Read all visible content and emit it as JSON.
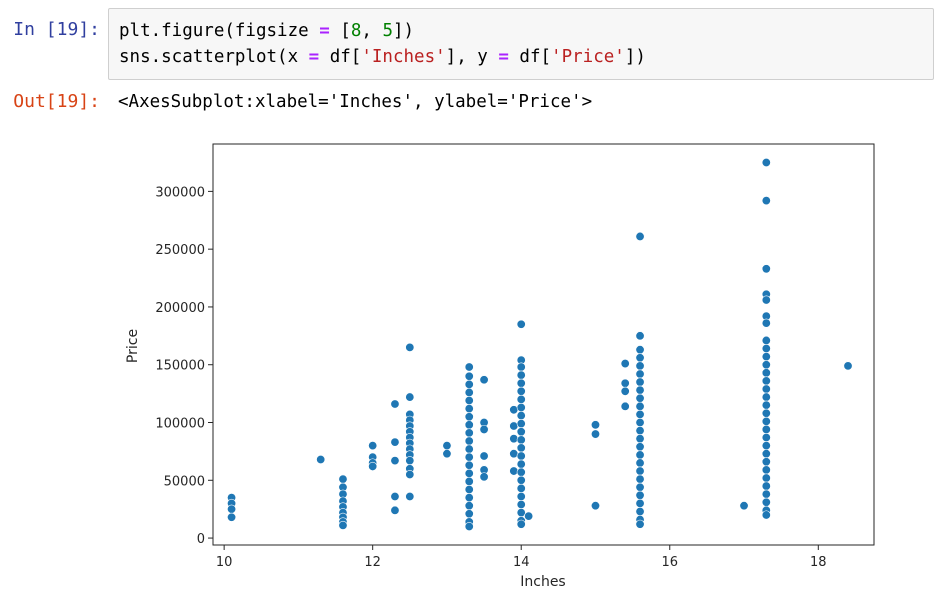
{
  "cell": {
    "in_prompt": "In [19]:",
    "out_prompt": "Out[19]:",
    "code": {
      "line1": {
        "a": "plt.figure(figsize ",
        "op": "=",
        "b": " [",
        "n1": "8",
        "c": ", ",
        "n2": "5",
        "d": "])"
      },
      "line2": {
        "a": "sns.scatterplot(x ",
        "op1": "=",
        "b": " df[",
        "s1": "'Inches'",
        "c": "], y ",
        "op2": "=",
        "d": " df[",
        "s2": "'Price'",
        "e": "])"
      }
    },
    "output": "<AxesSubplot:xlabel='Inches', ylabel='Price'>"
  },
  "chart_data": {
    "type": "scatter",
    "xlabel": "Inches",
    "ylabel": "Price",
    "xlim": [
      9.85,
      18.75
    ],
    "ylim": [
      -6000,
      341000
    ],
    "x_ticks": [
      10,
      12,
      14,
      16,
      18
    ],
    "y_ticks": [
      0,
      50000,
      100000,
      150000,
      200000,
      250000,
      300000
    ],
    "point_color": "#1f77b4",
    "grid": false,
    "points": [
      [
        10.1,
        35000
      ],
      [
        10.1,
        30000
      ],
      [
        10.1,
        25000
      ],
      [
        10.1,
        18000
      ],
      [
        11.3,
        68000
      ],
      [
        11.6,
        51000
      ],
      [
        11.6,
        44000
      ],
      [
        11.6,
        38000
      ],
      [
        11.6,
        32000
      ],
      [
        11.6,
        27000
      ],
      [
        11.6,
        22000
      ],
      [
        11.6,
        18000
      ],
      [
        11.6,
        14000
      ],
      [
        11.6,
        11000
      ],
      [
        12.0,
        80000
      ],
      [
        12.0,
        70000
      ],
      [
        12.0,
        65000
      ],
      [
        12.0,
        62000
      ],
      [
        12.3,
        116000
      ],
      [
        12.3,
        83000
      ],
      [
        12.3,
        67000
      ],
      [
        12.3,
        36000
      ],
      [
        12.3,
        24000
      ],
      [
        12.5,
        165000
      ],
      [
        12.5,
        122000
      ],
      [
        12.5,
        107000
      ],
      [
        12.5,
        102000
      ],
      [
        12.5,
        97000
      ],
      [
        12.5,
        92000
      ],
      [
        12.5,
        87000
      ],
      [
        12.5,
        82000
      ],
      [
        12.5,
        77000
      ],
      [
        12.5,
        72000
      ],
      [
        12.5,
        67000
      ],
      [
        12.5,
        60000
      ],
      [
        12.5,
        55000
      ],
      [
        12.5,
        36000
      ],
      [
        13.0,
        80000
      ],
      [
        13.0,
        73000
      ],
      [
        13.3,
        148000
      ],
      [
        13.3,
        140000
      ],
      [
        13.3,
        133000
      ],
      [
        13.3,
        126000
      ],
      [
        13.3,
        119000
      ],
      [
        13.3,
        112000
      ],
      [
        13.3,
        105000
      ],
      [
        13.3,
        98000
      ],
      [
        13.3,
        91000
      ],
      [
        13.3,
        84000
      ],
      [
        13.3,
        77000
      ],
      [
        13.3,
        70000
      ],
      [
        13.3,
        63000
      ],
      [
        13.3,
        56000
      ],
      [
        13.3,
        49000
      ],
      [
        13.3,
        42000
      ],
      [
        13.3,
        35000
      ],
      [
        13.3,
        28000
      ],
      [
        13.3,
        21000
      ],
      [
        13.3,
        14000
      ],
      [
        13.3,
        10000
      ],
      [
        13.5,
        137000
      ],
      [
        13.5,
        100000
      ],
      [
        13.5,
        94000
      ],
      [
        13.5,
        71000
      ],
      [
        13.5,
        59000
      ],
      [
        13.5,
        53000
      ],
      [
        13.9,
        111000
      ],
      [
        13.9,
        97000
      ],
      [
        13.9,
        86000
      ],
      [
        13.9,
        73000
      ],
      [
        13.9,
        58000
      ],
      [
        14.0,
        185000
      ],
      [
        14.0,
        154000
      ],
      [
        14.0,
        148000
      ],
      [
        14.0,
        141000
      ],
      [
        14.0,
        134000
      ],
      [
        14.0,
        127000
      ],
      [
        14.0,
        120000
      ],
      [
        14.0,
        113000
      ],
      [
        14.0,
        106000
      ],
      [
        14.0,
        99000
      ],
      [
        14.0,
        92000
      ],
      [
        14.0,
        85000
      ],
      [
        14.0,
        78000
      ],
      [
        14.0,
        71000
      ],
      [
        14.0,
        64000
      ],
      [
        14.0,
        57000
      ],
      [
        14.0,
        50000
      ],
      [
        14.0,
        43000
      ],
      [
        14.0,
        36000
      ],
      [
        14.0,
        29000
      ],
      [
        14.0,
        22000
      ],
      [
        14.0,
        15000
      ],
      [
        14.0,
        12000
      ],
      [
        14.1,
        19000
      ],
      [
        15.0,
        98000
      ],
      [
        15.0,
        90000
      ],
      [
        15.0,
        28000
      ],
      [
        15.4,
        151000
      ],
      [
        15.4,
        134000
      ],
      [
        15.4,
        127000
      ],
      [
        15.4,
        114000
      ],
      [
        15.6,
        261000
      ],
      [
        15.6,
        175000
      ],
      [
        15.6,
        163000
      ],
      [
        15.6,
        156000
      ],
      [
        15.6,
        149000
      ],
      [
        15.6,
        142000
      ],
      [
        15.6,
        135000
      ],
      [
        15.6,
        128000
      ],
      [
        15.6,
        121000
      ],
      [
        15.6,
        114000
      ],
      [
        15.6,
        107000
      ],
      [
        15.6,
        100000
      ],
      [
        15.6,
        93000
      ],
      [
        15.6,
        86000
      ],
      [
        15.6,
        79000
      ],
      [
        15.6,
        72000
      ],
      [
        15.6,
        65000
      ],
      [
        15.6,
        58000
      ],
      [
        15.6,
        51000
      ],
      [
        15.6,
        44000
      ],
      [
        15.6,
        37000
      ],
      [
        15.6,
        30000
      ],
      [
        15.6,
        23000
      ],
      [
        15.6,
        16000
      ],
      [
        15.6,
        12000
      ],
      [
        17.0,
        28000
      ],
      [
        17.3,
        325000
      ],
      [
        17.3,
        292000
      ],
      [
        17.3,
        233000
      ],
      [
        17.3,
        211000
      ],
      [
        17.3,
        206000
      ],
      [
        17.3,
        192000
      ],
      [
        17.3,
        186000
      ],
      [
        17.3,
        171000
      ],
      [
        17.3,
        164000
      ],
      [
        17.3,
        157000
      ],
      [
        17.3,
        150000
      ],
      [
        17.3,
        143000
      ],
      [
        17.3,
        136000
      ],
      [
        17.3,
        129000
      ],
      [
        17.3,
        122000
      ],
      [
        17.3,
        115000
      ],
      [
        17.3,
        108000
      ],
      [
        17.3,
        101000
      ],
      [
        17.3,
        94000
      ],
      [
        17.3,
        87000
      ],
      [
        17.3,
        80000
      ],
      [
        17.3,
        73000
      ],
      [
        17.3,
        66000
      ],
      [
        17.3,
        59000
      ],
      [
        17.3,
        52000
      ],
      [
        17.3,
        45000
      ],
      [
        17.3,
        38000
      ],
      [
        17.3,
        31000
      ],
      [
        17.3,
        24000
      ],
      [
        17.3,
        20000
      ],
      [
        18.4,
        149000
      ]
    ]
  }
}
